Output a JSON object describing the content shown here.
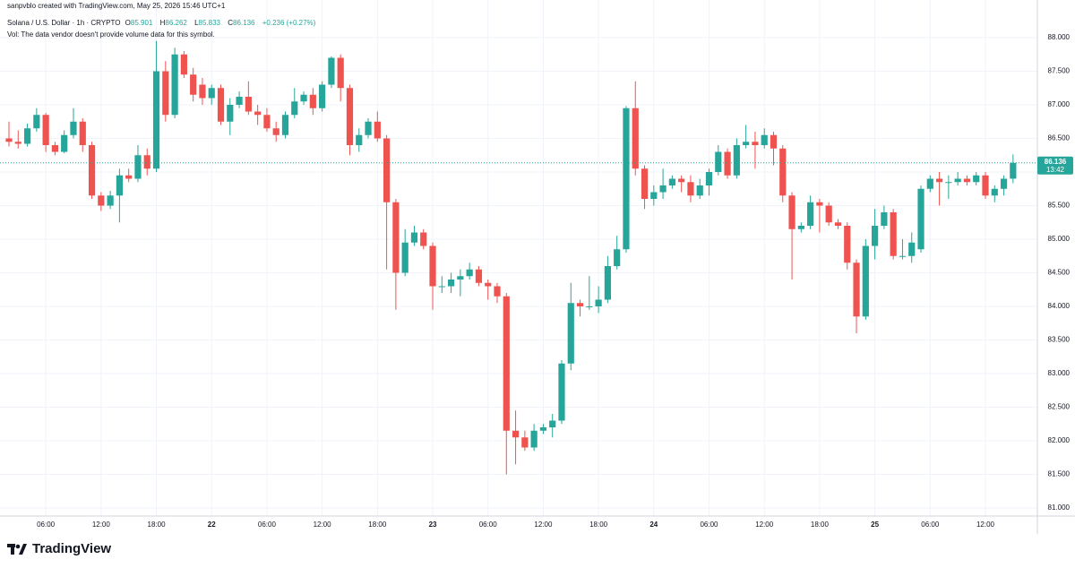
{
  "chart_data": {
    "type": "candlestick",
    "credit": "sanpvblo created with TradingView.com, May 25, 2026 15:46 UTC+1",
    "title": "Solana / U.S. Dollar · 1h · CRYPTO",
    "ohlc_keys": [
      "O",
      "H",
      "L",
      "C"
    ],
    "ohlc_values": [
      "85.901",
      "86.262",
      "85.833",
      "86.136"
    ],
    "change": "+0.236 (+0.27%)",
    "volume_note": "Vol: The data vendor doesn't provide volume data for this symbol.",
    "last_price_label": "86.136",
    "countdown": "13:42",
    "logo": "TradingView",
    "up_color": "#26a69a",
    "down_color": "#ef5350",
    "grid": true,
    "categories": [
      null,
      null,
      null,
      null,
      "06:00",
      null,
      null,
      null,
      null,
      null,
      "12:00",
      null,
      null,
      null,
      null,
      null,
      "18:00",
      null,
      null,
      null,
      null,
      null,
      "22",
      null,
      null,
      null,
      null,
      null,
      "06:00",
      null,
      null,
      null,
      null,
      null,
      "12:00",
      null,
      null,
      null,
      null,
      null,
      "18:00",
      null,
      null,
      null,
      null,
      null,
      "23",
      null,
      null,
      null,
      null,
      null,
      "06:00",
      null,
      null,
      null,
      null,
      null,
      "12:00",
      null,
      null,
      null,
      null,
      null,
      "18:00",
      null,
      null,
      null,
      null,
      null,
      "24",
      null,
      null,
      null,
      null,
      null,
      "06:00",
      null,
      null,
      null,
      null,
      null,
      "12:00",
      null,
      null,
      null,
      null,
      null,
      "18:00",
      null,
      null,
      null,
      null,
      null,
      "25",
      null,
      null,
      null,
      null,
      null,
      "06:00",
      null,
      null,
      null,
      null,
      null,
      "12:00",
      null,
      null,
      null
    ],
    "open": [
      86.5,
      86.45,
      86.42,
      86.65,
      86.85,
      86.4,
      86.3,
      86.55,
      86.75,
      86.4,
      85.65,
      85.5,
      85.65,
      85.95,
      85.9,
      86.25,
      86.05,
      87.5,
      86.85,
      87.75,
      87.45,
      87.3,
      87.1,
      87.25,
      86.75,
      87,
      87.12,
      86.9,
      86.85,
      86.65,
      86.55,
      86.85,
      87.05,
      87.15,
      86.95,
      87.3,
      87.7,
      87.25,
      86.4,
      86.55,
      86.75,
      86.5,
      85.55,
      84.5,
      84.95,
      85.1,
      84.9,
      84.3,
      84.3,
      84.4,
      84.45,
      84.55,
      84.35,
      84.3,
      84.15,
      82.15,
      82.05,
      81.9,
      82.15,
      82.2,
      82.3,
      83.15,
      84.05,
      84,
      84,
      84.1,
      84.6,
      84.85,
      86.95,
      86.05,
      85.6,
      85.7,
      85.8,
      85.9,
      85.85,
      85.65,
      85.8,
      86,
      86.3,
      85.95,
      86.4,
      86.45,
      86.4,
      86.55,
      86.35,
      85.65,
      85.15,
      85.2,
      85.55,
      85.5,
      85.25,
      85.2,
      84.65,
      83.85,
      84.9,
      85.2,
      85.4,
      84.75,
      84.75,
      84.85,
      85.75,
      85.9,
      85.85,
      85.85,
      85.9,
      85.85,
      85.95,
      85.65,
      85.75,
      85.901
    ],
    "high": [
      86.75,
      86.62,
      86.72,
      86.95,
      86.88,
      86.45,
      86.62,
      86.95,
      86.8,
      86.45,
      85.7,
      85.72,
      86.05,
      86.05,
      86.4,
      86.35,
      87.95,
      87.65,
      87.85,
      87.8,
      87.55,
      87.4,
      87.3,
      87.3,
      87.1,
      87.2,
      87.35,
      87,
      86.95,
      86.75,
      86.9,
      87.25,
      87.2,
      87.25,
      87.35,
      87.72,
      87.75,
      87.3,
      86.65,
      86.8,
      86.9,
      86.55,
      85.6,
      85.15,
      85.2,
      85.15,
      84.95,
      84.45,
      84.5,
      84.55,
      84.65,
      84.6,
      84.4,
      84.35,
      84.2,
      82.45,
      82.15,
      82.25,
      82.25,
      82.4,
      83.2,
      84.35,
      84.1,
      84.45,
      84.3,
      84.75,
      85.05,
      86.98,
      87.35,
      86.1,
      85.8,
      86.05,
      85.95,
      85.95,
      85.95,
      85.9,
      86.05,
      86.4,
      86.35,
      86.5,
      86.7,
      86.6,
      86.65,
      86.6,
      86.4,
      85.7,
      85.25,
      85.65,
      85.6,
      85.55,
      85.3,
      85.25,
      84.7,
      85,
      85.45,
      85.5,
      85.45,
      85,
      85.1,
      85.8,
      85.95,
      86,
      85.95,
      86,
      85.95,
      86,
      86,
      85.8,
      85.95,
      86.262
    ],
    "low": [
      86.38,
      86.35,
      86.38,
      86.6,
      86.3,
      86.25,
      86.28,
      86.5,
      86.3,
      85.6,
      85.42,
      85.45,
      85.25,
      85.85,
      85.85,
      85.95,
      86,
      86.75,
      86.8,
      87.4,
      87.05,
      87,
      87,
      86.7,
      86.55,
      86.95,
      86.85,
      86.7,
      86.6,
      86.45,
      86.5,
      86.8,
      87,
      86.85,
      86.9,
      87.25,
      87.05,
      86.25,
      86.3,
      86.5,
      86.45,
      84.55,
      83.95,
      84.45,
      84.9,
      84.85,
      83.95,
      84.2,
      84.2,
      84.15,
      84.4,
      84.3,
      84.1,
      84.05,
      81.5,
      81.65,
      81.85,
      81.85,
      82.1,
      82.05,
      82.25,
      83.05,
      83.85,
      83.95,
      83.9,
      84.05,
      84.55,
      84.8,
      85.95,
      85.45,
      85.5,
      85.6,
      85.75,
      85.7,
      85.55,
      85.6,
      85.65,
      85.95,
      85.9,
      85.9,
      86.35,
      86.05,
      86.35,
      86.1,
      85.55,
      84.4,
      85.1,
      85.15,
      85.1,
      85.2,
      85.15,
      84.55,
      83.6,
      83.8,
      84.7,
      85.15,
      84.7,
      84.7,
      84.65,
      84.8,
      85.7,
      85.5,
      85.6,
      85.8,
      85.8,
      85.8,
      85.6,
      85.55,
      85.65,
      85.833
    ],
    "close": [
      86.45,
      86.42,
      86.65,
      86.85,
      86.4,
      86.3,
      86.55,
      86.75,
      86.4,
      85.65,
      85.5,
      85.65,
      85.95,
      85.9,
      86.25,
      86.05,
      87.5,
      86.85,
      87.75,
      87.45,
      87.15,
      87.1,
      87.25,
      86.75,
      87,
      87.12,
      86.9,
      86.85,
      86.65,
      86.55,
      86.85,
      87.05,
      87.15,
      86.95,
      87.3,
      87.7,
      87.25,
      86.4,
      86.55,
      86.75,
      86.5,
      85.55,
      84.5,
      84.95,
      85.1,
      84.9,
      84.3,
      84.3,
      84.4,
      84.45,
      84.55,
      84.35,
      84.3,
      84.15,
      82.15,
      82.05,
      81.9,
      82.15,
      82.2,
      82.3,
      83.15,
      84.05,
      84,
      84,
      84.1,
      84.6,
      84.85,
      86.95,
      86.05,
      85.6,
      85.7,
      85.8,
      85.9,
      85.85,
      85.65,
      85.8,
      86,
      86.3,
      85.95,
      86.4,
      86.45,
      86.4,
      86.55,
      86.35,
      85.65,
      85.15,
      85.2,
      85.55,
      85.5,
      85.25,
      85.2,
      84.65,
      83.85,
      84.9,
      85.2,
      85.4,
      84.75,
      84.75,
      84.95,
      85.75,
      85.9,
      85.85,
      85.85,
      85.9,
      85.85,
      85.95,
      85.65,
      85.75,
      85.9,
      86.136
    ],
    "ylim": [
      80.88,
      88.32
    ],
    "yticks": [
      {
        "value": 81,
        "label": "81.000"
      },
      {
        "value": 81.5,
        "label": "81.500"
      },
      {
        "value": 82,
        "label": "82.000"
      },
      {
        "value": 82.5,
        "label": "82.500"
      },
      {
        "value": 83,
        "label": "83.000"
      },
      {
        "value": 83.5,
        "label": "83.500"
      },
      {
        "value": 84,
        "label": "84.000"
      },
      {
        "value": 84.5,
        "label": "84.500"
      },
      {
        "value": 85,
        "label": "85.000"
      },
      {
        "value": 85.5,
        "label": "85.500"
      },
      {
        "value": 86,
        "label": "86.000"
      },
      {
        "value": 86.5,
        "label": "86.500"
      },
      {
        "value": 87,
        "label": "87.000"
      },
      {
        "value": 87.5,
        "label": "87.500"
      },
      {
        "value": 88,
        "label": "88.000"
      }
    ]
  }
}
